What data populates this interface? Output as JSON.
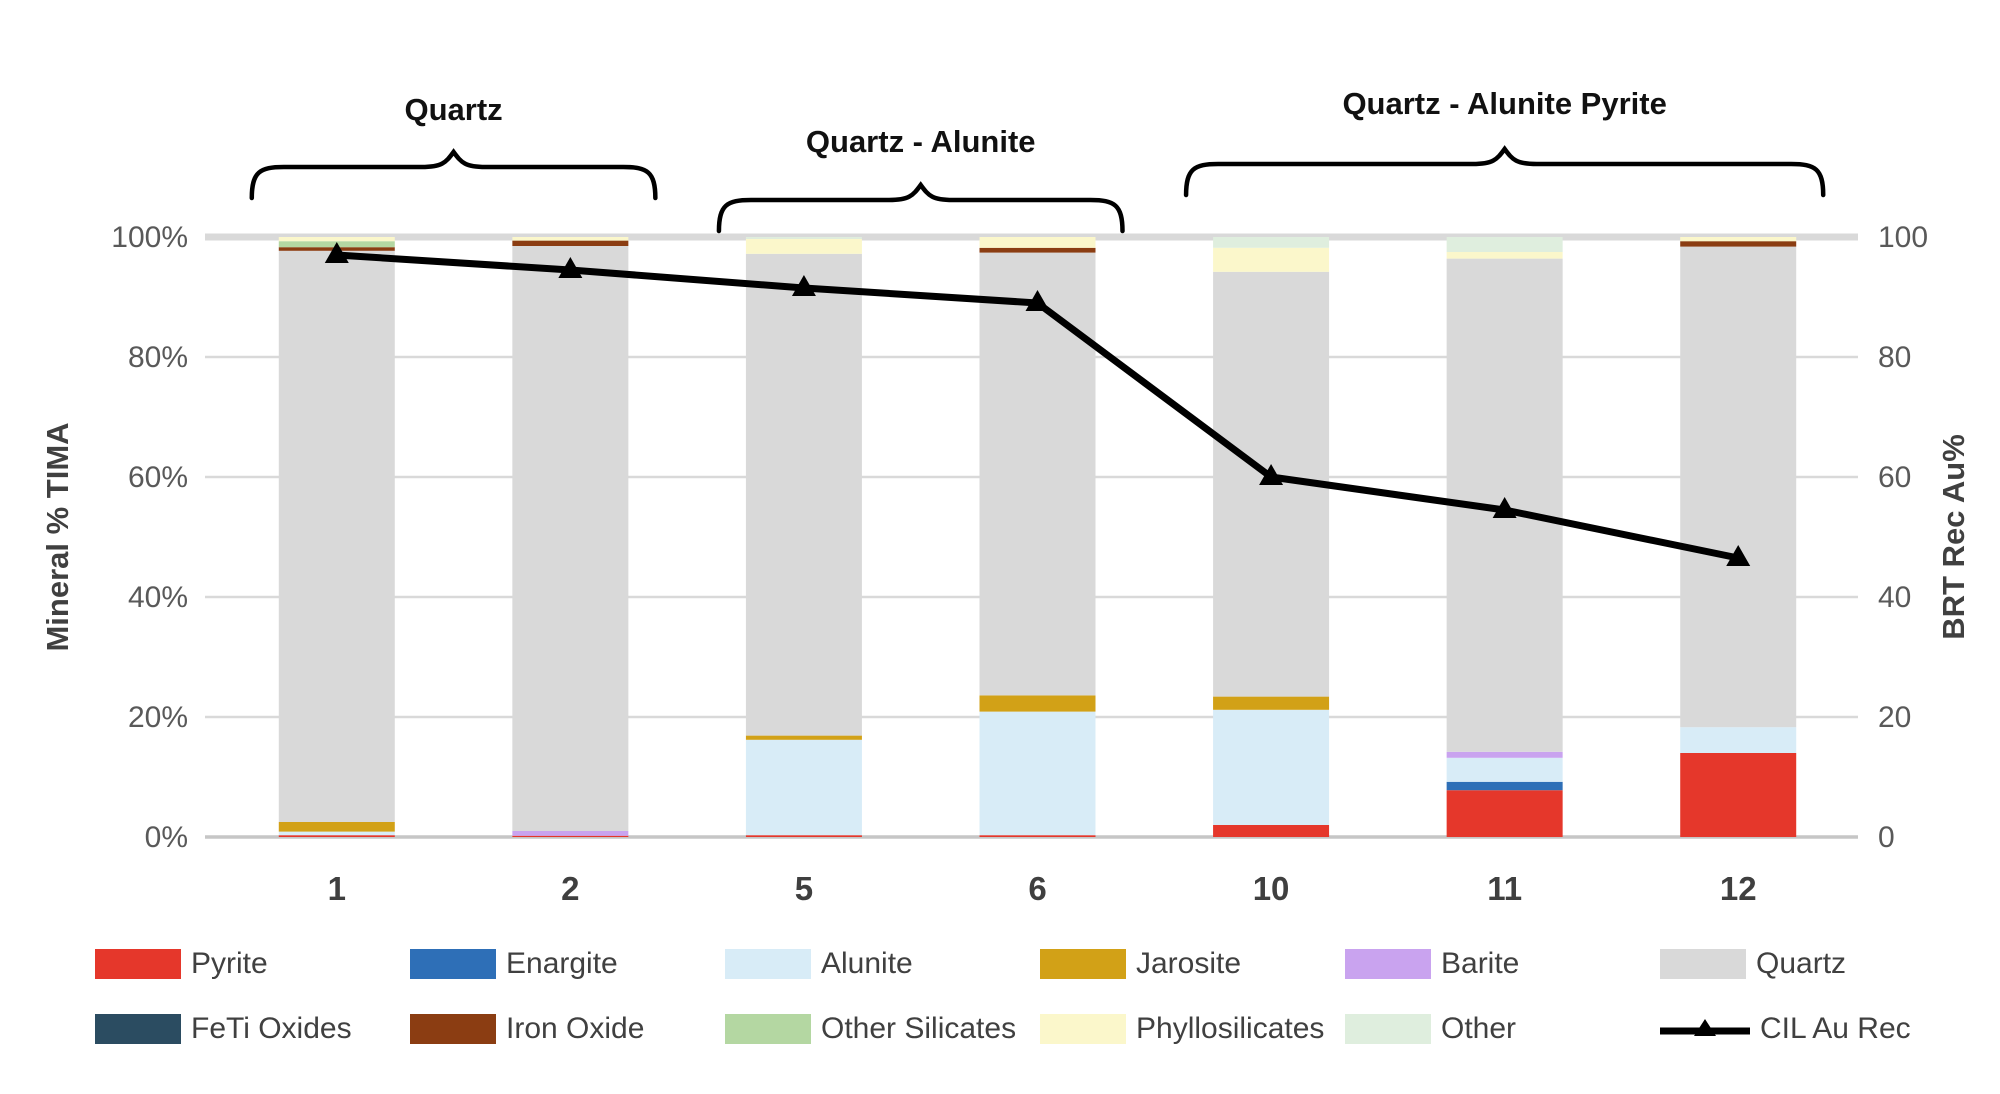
{
  "chart_data": {
    "type": "bar",
    "subtype": "stacked-percent-with-line-overlay",
    "categories": [
      "1",
      "2",
      "5",
      "6",
      "10",
      "11",
      "12"
    ],
    "group_brackets": [
      {
        "label": "Quartz",
        "from": 0,
        "to": 1
      },
      {
        "label": "Quartz - Alunite",
        "from": 2,
        "to": 3
      },
      {
        "label": "Quartz - Alunite Pyrite",
        "from": 4,
        "to": 6
      }
    ],
    "series": [
      {
        "name": "Pyrite",
        "color": "#e5372b",
        "values": [
          0.3,
          0.2,
          0.3,
          0.3,
          2.0,
          7.8,
          14.0
        ]
      },
      {
        "name": "Enargite",
        "color": "#2e6fb7",
        "values": [
          0,
          0,
          0,
          0,
          0,
          1.4,
          0
        ]
      },
      {
        "name": "Alunite",
        "color": "#d8ecf7",
        "values": [
          0.6,
          0,
          15.9,
          20.6,
          19.2,
          4.0,
          4.3
        ]
      },
      {
        "name": "Jarosite",
        "color": "#d2a117",
        "values": [
          1.6,
          0,
          0.7,
          2.7,
          2.2,
          0,
          0
        ]
      },
      {
        "name": "Barite",
        "color": "#c9a3ef",
        "values": [
          0,
          0.8,
          0,
          0,
          0,
          1.0,
          0
        ]
      },
      {
        "name": "Quartz",
        "color": "#d9d9d9",
        "values": [
          95.2,
          97.5,
          80.3,
          73.8,
          70.8,
          82.2,
          80.1
        ]
      },
      {
        "name": "FeTi Oxides",
        "color": "#2b4c61",
        "values": [
          0,
          0,
          0,
          0,
          0,
          0,
          0
        ]
      },
      {
        "name": "Iron Oxide",
        "color": "#8b3d12",
        "values": [
          0.6,
          0.9,
          0,
          0.8,
          0,
          0,
          0.9
        ]
      },
      {
        "name": "Other Silicates",
        "color": "#b4d7a2",
        "values": [
          1.0,
          0,
          0,
          0,
          0,
          0,
          0
        ]
      },
      {
        "name": "Phyllosilicates",
        "color": "#fbf7cb",
        "values": [
          0.7,
          0.6,
          2.5,
          1.8,
          4.0,
          1.1,
          0.7
        ]
      },
      {
        "name": "Other",
        "color": "#dfeede",
        "values": [
          0,
          0,
          0.3,
          0,
          1.8,
          2.5,
          0
        ]
      }
    ],
    "line_series": {
      "name": "CIL Au Rec",
      "color": "#000000",
      "marker": "triangle",
      "values": [
        97,
        94.5,
        91.5,
        89,
        60,
        54.5,
        46.5
      ]
    },
    "axes": {
      "left_title": "Mineral % TIMA",
      "right_title": "BRT Rec Au%",
      "left_ticks": [
        "0%",
        "20%",
        "40%",
        "60%",
        "80%",
        "100%"
      ],
      "right_ticks": [
        "0",
        "20",
        "40",
        "60",
        "80",
        "100"
      ],
      "tick_values": [
        0,
        20,
        40,
        60,
        80,
        100
      ],
      "ylim": [
        0,
        100
      ],
      "grid": true
    },
    "legend": {
      "columns_per_row": 6
    },
    "colors": {
      "gridline": "#d9d9d9",
      "axis_line": "#c6c6c6",
      "brace": "#000000",
      "tick_text": "#595959",
      "background": "#ffffff"
    }
  }
}
